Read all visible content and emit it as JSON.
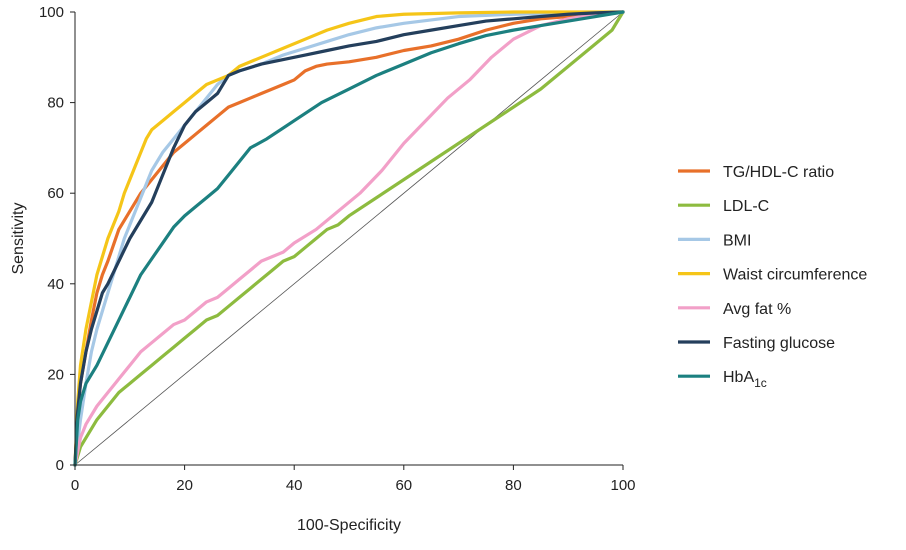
{
  "chart_data": {
    "type": "line",
    "xlabel": "100-Specificity",
    "ylabel": "Sensitivity",
    "xlim": [
      0,
      100
    ],
    "ylim": [
      0,
      100
    ],
    "x_ticks": [
      0,
      20,
      40,
      60,
      80,
      100
    ],
    "y_ticks": [
      0,
      20,
      40,
      60,
      80,
      100
    ],
    "grid": false,
    "legend_position": "right",
    "reference_line": {
      "x": [
        0,
        100
      ],
      "y": [
        0,
        100
      ],
      "color": "#555555"
    },
    "series": [
      {
        "name": "TG/HDL-C ratio",
        "legend_main": "TG/HDL-C ratio",
        "legend_sub": "",
        "color": "#E8702A",
        "x": [
          0,
          0.5,
          1,
          2,
          3,
          4,
          5,
          6,
          8,
          10,
          12,
          14,
          16,
          18,
          20,
          22,
          24,
          26,
          28,
          30,
          32,
          34,
          36,
          38,
          40,
          42,
          44,
          46,
          50,
          55,
          60,
          65,
          70,
          75,
          80,
          85,
          90,
          95,
          100
        ],
        "y": [
          0,
          12,
          18,
          25,
          32,
          38,
          42,
          45,
          52,
          56,
          60,
          63,
          66,
          69,
          71,
          73,
          75,
          77,
          79,
          80,
          81,
          82,
          83,
          84,
          85,
          87,
          88,
          88.5,
          89,
          90,
          91.5,
          92.5,
          94,
          96,
          97.5,
          98.5,
          99,
          99.5,
          100
        ]
      },
      {
        "name": "LDL-C",
        "legend_main": "LDL-C",
        "legend_sub": "",
        "color": "#8DBB3F",
        "x": [
          0,
          1,
          2,
          4,
          6,
          8,
          10,
          12,
          14,
          16,
          18,
          20,
          22,
          24,
          26,
          28,
          30,
          32,
          34,
          36,
          38,
          40,
          42,
          44,
          46,
          48,
          50,
          55,
          60,
          65,
          70,
          75,
          80,
          85,
          90,
          95,
          98,
          100
        ],
        "y": [
          0,
          4,
          6,
          10,
          13,
          16,
          18,
          20,
          22,
          24,
          26,
          28,
          30,
          32,
          33,
          35,
          37,
          39,
          41,
          43,
          45,
          46,
          48,
          50,
          52,
          53,
          55,
          59,
          63,
          67,
          71,
          75,
          79,
          83,
          88,
          93,
          96,
          100
        ]
      },
      {
        "name": "BMI",
        "legend_main": "BMI",
        "legend_sub": "",
        "color": "#A6C8E6",
        "x": [
          0,
          1,
          2,
          3,
          4,
          5,
          6,
          7,
          8,
          9,
          10,
          11,
          12,
          13,
          14,
          15,
          16,
          18,
          20,
          22,
          24,
          26,
          28,
          30,
          34,
          38,
          42,
          46,
          50,
          55,
          60,
          70,
          80,
          90,
          100
        ],
        "y": [
          0,
          10,
          18,
          25,
          30,
          34,
          38,
          42,
          46,
          50,
          53,
          56,
          59,
          62,
          65,
          67,
          69,
          72,
          75,
          78,
          81,
          84,
          86,
          87,
          88.5,
          90.5,
          92,
          93.5,
          95,
          96.5,
          97.5,
          99,
          99.5,
          99.8,
          100
        ]
      },
      {
        "name": "Waist circumference",
        "legend_main": "Waist circumference",
        "legend_sub": "",
        "color": "#F5C518",
        "x": [
          0,
          0.5,
          1,
          2,
          3,
          4,
          5,
          6,
          7,
          8,
          9,
          10,
          11,
          12,
          13,
          14,
          15,
          16,
          18,
          20,
          22,
          24,
          26,
          28,
          30,
          34,
          38,
          42,
          46,
          50,
          55,
          60,
          70,
          80,
          90,
          100
        ],
        "y": [
          0,
          14,
          22,
          30,
          36,
          42,
          46,
          50,
          53,
          56,
          60,
          63,
          66,
          69,
          72,
          74,
          75,
          76,
          78,
          80,
          82,
          84,
          85,
          86,
          88,
          90,
          92,
          94,
          96,
          97.5,
          99,
          99.5,
          99.8,
          100,
          100,
          100
        ]
      },
      {
        "name": "Avg fat %",
        "legend_main": "Avg fat %",
        "legend_sub": "",
        "color": "#F2A0C8",
        "x": [
          0,
          1,
          2,
          4,
          6,
          8,
          10,
          12,
          14,
          16,
          18,
          20,
          22,
          24,
          26,
          28,
          30,
          32,
          34,
          36,
          38,
          40,
          44,
          48,
          52,
          56,
          60,
          64,
          68,
          72,
          76,
          80,
          85,
          90,
          95,
          100
        ],
        "y": [
          0,
          6,
          9,
          13,
          16,
          19,
          22,
          25,
          27,
          29,
          31,
          32,
          34,
          36,
          37,
          39,
          41,
          43,
          45,
          46,
          47,
          49,
          52,
          56,
          60,
          65,
          71,
          76,
          81,
          85,
          90,
          94,
          97,
          98.5,
          99.5,
          100
        ]
      },
      {
        "name": "Fasting glucose",
        "legend_main": "Fasting glucose",
        "legend_sub": "",
        "color": "#243F5C",
        "x": [
          0,
          0.5,
          1,
          2,
          3,
          4,
          5,
          6,
          8,
          10,
          12,
          14,
          16,
          18,
          20,
          22,
          24,
          26,
          28,
          30,
          34,
          38,
          42,
          46,
          50,
          55,
          60,
          65,
          70,
          75,
          80,
          85,
          90,
          95,
          100
        ],
        "y": [
          0,
          12,
          18,
          25,
          30,
          34,
          38,
          40,
          45,
          50,
          54,
          58,
          64,
          70,
          75,
          78,
          80,
          82,
          86,
          87,
          88.5,
          89.5,
          90.5,
          91.5,
          92.5,
          93.5,
          95,
          96,
          97,
          98,
          98.5,
          99,
          99.5,
          99.8,
          100
        ]
      },
      {
        "name": "HbA1c",
        "legend_main": "HbA",
        "legend_sub": "1c",
        "color": "#1C8080",
        "x": [
          0,
          0.5,
          1,
          2,
          4,
          6,
          8,
          10,
          12,
          14,
          16,
          18,
          20,
          22,
          24,
          26,
          28,
          30,
          32,
          35,
          40,
          45,
          50,
          55,
          60,
          65,
          70,
          75,
          80,
          85,
          90,
          95,
          100
        ],
        "y": [
          0,
          10,
          14,
          18,
          22,
          27,
          32,
          37,
          42,
          45.5,
          49,
          52.5,
          55,
          57,
          59,
          61,
          64,
          67,
          70,
          72,
          76,
          80,
          83,
          86,
          88.5,
          91,
          93,
          94.8,
          96,
          97,
          98,
          99,
          100
        ]
      }
    ]
  }
}
